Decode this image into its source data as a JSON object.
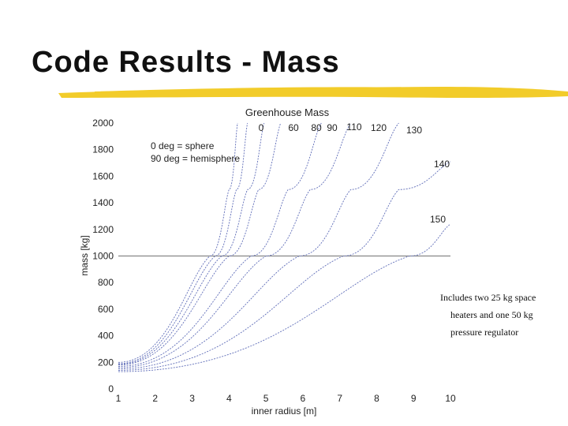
{
  "slide": {
    "title": "Code Results - Mass",
    "underline_color": "#f2cc2a"
  },
  "chart_data": {
    "type": "line",
    "title": "Greenhouse Mass",
    "xlabel": "inner radius [m]",
    "ylabel": "mass [kg]",
    "xlim": [
      1,
      10
    ],
    "ylim": [
      0,
      2000
    ],
    "xticks": [
      "1",
      "2",
      "3",
      "4",
      "5",
      "6",
      "7",
      "8",
      "9",
      "10"
    ],
    "yticks": [
      "0",
      "200",
      "400",
      "600",
      "800",
      "1000",
      "1200",
      "1400",
      "1600",
      "1800",
      "2000"
    ],
    "grid": false,
    "line_color": "#5f6db8",
    "reference_line": {
      "y": 1000,
      "color": "#444444"
    },
    "series_labels": [
      "0",
      "60",
      "80",
      "90",
      "110",
      "120",
      "130",
      "140",
      "150"
    ],
    "annotation": [
      "0 deg = sphere",
      "90 deg = hemisphere"
    ],
    "series": [
      {
        "name": "0",
        "x": [
          1,
          3.48,
          4.0,
          4.23
        ],
        "y": [
          200,
          1000,
          1500,
          2000
        ]
      },
      {
        "name": "60",
        "x": [
          1,
          3.62,
          4.2,
          4.5
        ],
        "y": [
          190,
          1000,
          1500,
          2000
        ]
      },
      {
        "name": "80",
        "x": [
          1,
          3.8,
          4.5,
          4.95
        ],
        "y": [
          185,
          1000,
          1500,
          2000
        ]
      },
      {
        "name": "90",
        "x": [
          1,
          4.0,
          4.8,
          5.4
        ],
        "y": [
          180,
          1000,
          1500,
          2000
        ]
      },
      {
        "name": "110",
        "x": [
          1,
          4.6,
          5.6,
          6.5
        ],
        "y": [
          170,
          1000,
          1500,
          2000
        ]
      },
      {
        "name": "120",
        "x": [
          1,
          5.0,
          6.2,
          7.3
        ],
        "y": [
          160,
          1000,
          1500,
          2000
        ]
      },
      {
        "name": "130",
        "x": [
          1,
          5.9,
          7.3,
          8.6
        ],
        "y": [
          150,
          1000,
          1500,
          2000
        ]
      },
      {
        "name": "140",
        "x": [
          1,
          7.1,
          8.6,
          10.0
        ],
        "y": [
          140,
          1000,
          1500,
          1710
        ]
      },
      {
        "name": "150",
        "x": [
          1,
          8.9,
          10.0
        ],
        "y": [
          130,
          1000,
          1240
        ]
      }
    ],
    "note": [
      "Includes two 25 kg space",
      "heaters and one 50 kg",
      "pressure regulator"
    ]
  }
}
